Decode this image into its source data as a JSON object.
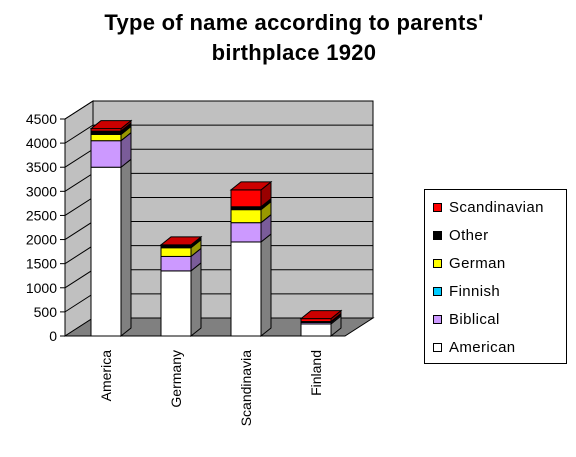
{
  "title_lines": [
    "Type of name according to parents'",
    "birthplace 1920"
  ],
  "chart_data": {
    "type": "bar",
    "stacked": true,
    "three_d": true,
    "title": "Type of name according to parents' birthplace 1920",
    "categories": [
      "America",
      "Germany",
      "Scandinavia",
      "Finland"
    ],
    "series": [
      {
        "name": "American",
        "color": "#ffffff",
        "values": [
          3500,
          1350,
          1950,
          250
        ]
      },
      {
        "name": "Biblical",
        "color": "#cc99ff",
        "values": [
          550,
          300,
          400,
          30
        ]
      },
      {
        "name": "Finnish",
        "color": "#00ccff",
        "values": [
          0,
          0,
          0,
          0
        ]
      },
      {
        "name": "German",
        "color": "#ffff00",
        "values": [
          130,
          180,
          270,
          0
        ]
      },
      {
        "name": "Other",
        "color": "#000000",
        "values": [
          70,
          40,
          60,
          20
        ]
      },
      {
        "name": "Scandinavian",
        "color": "#ff0000",
        "values": [
          50,
          20,
          350,
          60
        ]
      }
    ],
    "y_ticks": [
      "0",
      "500",
      "1000",
      "1500",
      "2000",
      "2500",
      "3000",
      "3500",
      "4000",
      "4500"
    ],
    "ylim": [
      0,
      4500
    ],
    "ytick_step": 500,
    "grid": true,
    "legend_position": "right",
    "wall_color": "#c0c0c0",
    "floor_color": "#808080",
    "xlabel": "",
    "ylabel": ""
  },
  "legend": {
    "items": [
      {
        "label": "Scandinavian",
        "color": "#ff0000"
      },
      {
        "label": "Other",
        "color": "#000000"
      },
      {
        "label": "German",
        "color": "#ffff00"
      },
      {
        "label": "Finnish",
        "color": "#00ccff"
      },
      {
        "label": "Biblical",
        "color": "#cc99ff"
      },
      {
        "label": "American",
        "color": "#ffffff"
      }
    ]
  }
}
